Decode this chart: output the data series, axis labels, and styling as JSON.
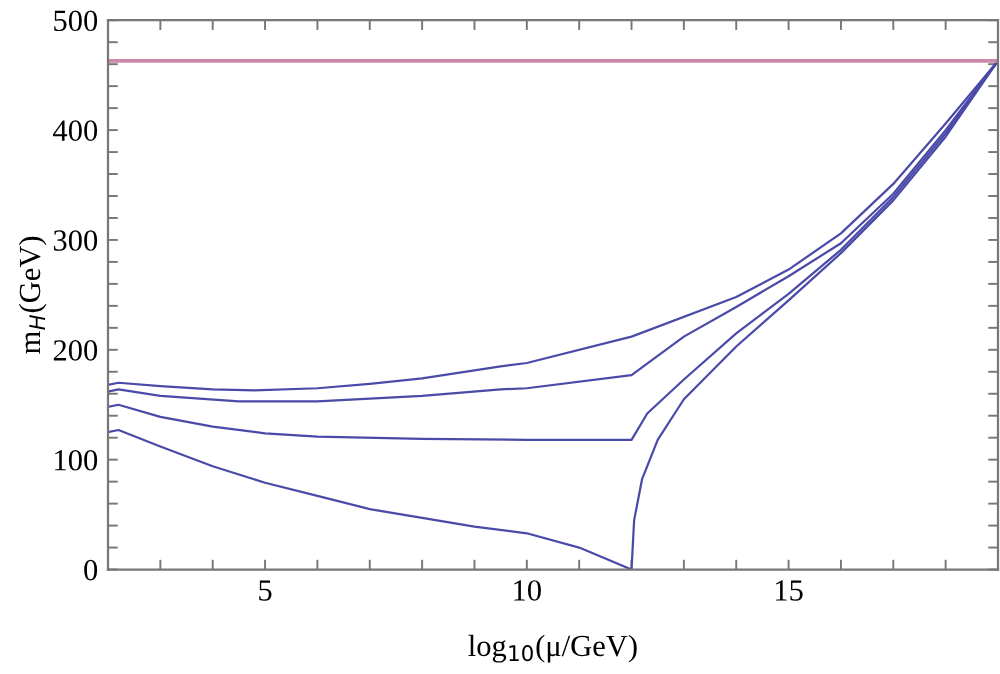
{
  "chart_data": {
    "type": "line",
    "xlabel": "log$_{10}$(μ/GeV)",
    "ylabel": "m$_{H}$(GeV)",
    "xlim": [
      2,
      19
    ],
    "ylim": [
      0,
      500
    ],
    "xticks": [
      {
        "value": 2,
        "label": null
      },
      {
        "value": 3,
        "label": null
      },
      {
        "value": 4,
        "label": null
      },
      5,
      {
        "value": 6,
        "label": null
      },
      {
        "value": 7,
        "label": null
      },
      {
        "value": 8,
        "label": null
      },
      {
        "value": 9,
        "label": null
      },
      10,
      {
        "value": 11,
        "label": null
      },
      {
        "value": 12,
        "label": null
      },
      {
        "value": 13,
        "label": null
      },
      {
        "value": 14,
        "label": null
      },
      15,
      {
        "value": 16,
        "label": null
      },
      {
        "value": 17,
        "label": null
      },
      {
        "value": 18,
        "label": null
      },
      {
        "value": 19,
        "label": null
      }
    ],
    "yticks": [
      0,
      {
        "value": 20,
        "label": null
      },
      {
        "value": 40,
        "label": null
      },
      {
        "value": 60,
        "label": null
      },
      {
        "value": 80,
        "label": null
      },
      100,
      {
        "value": 120,
        "label": null
      },
      {
        "value": 140,
        "label": null
      },
      {
        "value": 160,
        "label": null
      },
      {
        "value": 180,
        "label": null
      },
      200,
      {
        "value": 220,
        "label": null
      },
      {
        "value": 240,
        "label": null
      },
      {
        "value": 260,
        "label": null
      },
      {
        "value": 280,
        "label": null
      },
      300,
      {
        "value": 320,
        "label": null
      },
      {
        "value": 340,
        "label": null
      },
      {
        "value": 360,
        "label": null
      },
      {
        "value": 380,
        "label": null
      },
      400,
      {
        "value": 420,
        "label": null
      },
      {
        "value": 440,
        "label": null
      },
      {
        "value": 460,
        "label": null
      },
      {
        "value": 480,
        "label": null
      },
      500
    ],
    "marker": "none",
    "line_style": "solid",
    "series": [
      {
        "color": "#4a4aa8",
        "x": [
          2,
          2.2,
          3,
          4,
          4.8,
          6,
          7,
          8,
          9.5,
          10,
          12,
          14,
          15,
          16,
          17,
          18,
          19
        ],
        "values": [
          168,
          170,
          167,
          164,
          163,
          165,
          169,
          174,
          185,
          188,
          212,
          248,
          273,
          306,
          351,
          406,
          463
        ]
      },
      {
        "color": "#4a4aa8",
        "x": [
          2,
          2.2,
          3,
          4.5,
          6,
          8,
          9.5,
          10,
          12,
          13,
          14,
          15,
          16,
          17,
          18,
          19
        ],
        "values": [
          162,
          164,
          158,
          153,
          153,
          158,
          164,
          165,
          177,
          212,
          239,
          267,
          297,
          342,
          400,
          463
        ]
      },
      {
        "color": "#4a4aa8",
        "x": [
          2,
          2.2,
          3,
          4,
          5,
          6,
          8,
          10,
          12,
          12.3,
          13,
          14,
          15,
          16,
          17,
          18,
          19
        ],
        "values": [
          148,
          150,
          139,
          130,
          124,
          121,
          119,
          118,
          118,
          142,
          173,
          215,
          251,
          291,
          339,
          397,
          463
        ]
      },
      {
        "color": "#4a4aa8",
        "x": [
          2,
          2.2,
          3,
          4,
          5,
          6,
          7,
          8,
          9,
          10,
          11,
          12,
          12.05,
          12.2,
          12.5,
          13,
          14,
          15,
          16,
          17,
          18,
          19
        ],
        "values": [
          125,
          127,
          112,
          94,
          79,
          67,
          55,
          47,
          39,
          33,
          20,
          0,
          45,
          82,
          118,
          155,
          203,
          245,
          288,
          336,
          394,
          463
        ]
      }
    ],
    "ref_lines": [
      {
        "axis": "y",
        "value": 463,
        "color": "#cc88aa"
      }
    ]
  }
}
